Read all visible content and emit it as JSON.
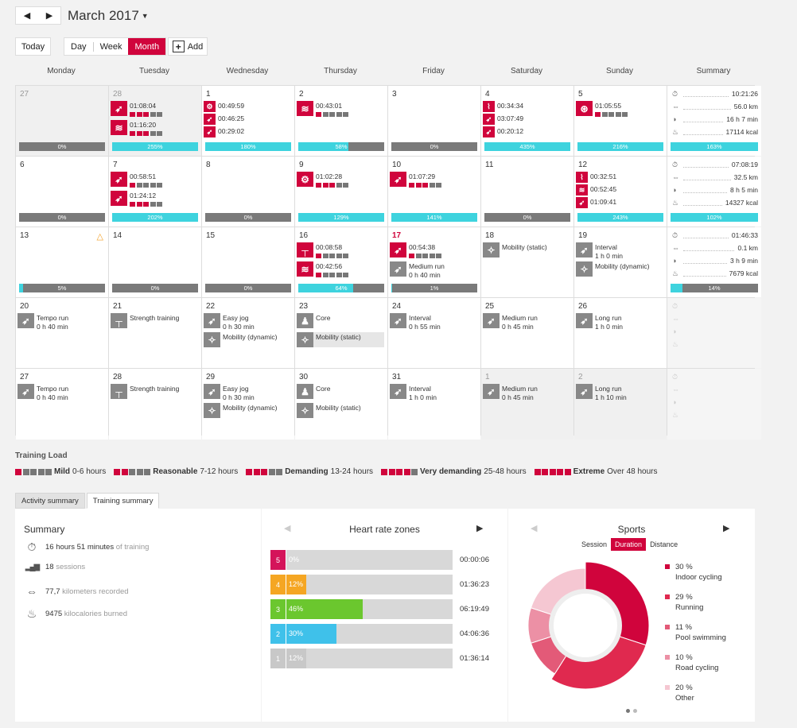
{
  "header": {
    "prev_icon": "prev-arrow",
    "next_icon": "next-arrow",
    "month": "March 2017",
    "today": "Today",
    "views": [
      "Day",
      "Week",
      "Month"
    ],
    "active_view": "Month",
    "add": "Add"
  },
  "days": [
    "Monday",
    "Tuesday",
    "Wednesday",
    "Thursday",
    "Friday",
    "Saturday",
    "Sunday",
    "Summary"
  ],
  "weeks": [
    {
      "cells": [
        {
          "day": "27",
          "dim": true,
          "grey": true,
          "acts": [],
          "bar": {
            "label": "0%",
            "fill": 0
          }
        },
        {
          "day": "28",
          "dim": true,
          "grey": true,
          "acts": [
            {
              "icon": "run",
              "color": "r",
              "lines": [
                "01:08:04"
              ],
              "dots": 3
            },
            {
              "icon": "swim",
              "color": "r",
              "lines": [
                "01:16:20"
              ],
              "dots": 3
            }
          ],
          "bar": {
            "label": "255%",
            "fill": 1
          }
        },
        {
          "day": "1",
          "acts": [
            {
              "icon": "cycle",
              "color": "r",
              "lines": [
                "00:49:59"
              ],
              "small": true
            },
            {
              "icon": "run",
              "color": "r",
              "lines": [
                "00:46:25"
              ],
              "small": true
            },
            {
              "icon": "run",
              "color": "r",
              "lines": [
                "00:29:02"
              ],
              "small": true
            }
          ],
          "bar": {
            "label": "180%",
            "fill": 1
          }
        },
        {
          "day": "2",
          "acts": [
            {
              "icon": "swim",
              "color": "r",
              "lines": [
                "00:43:01"
              ],
              "dots": 1
            }
          ],
          "bar": {
            "label": "58%",
            "fill": 0.58
          }
        },
        {
          "day": "3",
          "acts": [],
          "bar": {
            "label": "0%",
            "fill": 0
          }
        },
        {
          "day": "4",
          "acts": [
            {
              "icon": "row",
              "color": "r",
              "lines": [
                "00:34:34"
              ],
              "small": true
            },
            {
              "icon": "run",
              "color": "r",
              "lines": [
                "03:07:49"
              ],
              "small": true
            },
            {
              "icon": "run",
              "color": "r",
              "lines": [
                "00:20:12"
              ],
              "small": true
            }
          ],
          "bar": {
            "label": "435%",
            "fill": 1
          }
        },
        {
          "day": "5",
          "acts": [
            {
              "icon": "tri",
              "color": "r",
              "lines": [
                "01:05:55"
              ],
              "dots": 1
            }
          ],
          "bar": {
            "label": "216%",
            "fill": 1
          }
        }
      ],
      "summary": {
        "duration": "10:21:26",
        "distance": "56.0 km",
        "load": "16 h 7 min",
        "kcal": "17114 kcal",
        "bar": "163%",
        "fill": 1
      }
    },
    {
      "cells": [
        {
          "day": "6",
          "acts": [],
          "bar": {
            "label": "0%",
            "fill": 0
          }
        },
        {
          "day": "7",
          "acts": [
            {
              "icon": "run",
              "color": "r",
              "lines": [
                "00:58:51"
              ],
              "dots": 1
            },
            {
              "icon": "run",
              "color": "r",
              "lines": [
                "01:24:12"
              ],
              "dots": 3
            }
          ],
          "bar": {
            "label": "202%",
            "fill": 1
          }
        },
        {
          "day": "8",
          "acts": [],
          "bar": {
            "label": "0%",
            "fill": 0
          }
        },
        {
          "day": "9",
          "acts": [
            {
              "icon": "cycle",
              "color": "r",
              "lines": [
                "01:02:28"
              ],
              "dots": 3
            }
          ],
          "bar": {
            "label": "129%",
            "fill": 1
          }
        },
        {
          "day": "10",
          "acts": [
            {
              "icon": "run",
              "color": "r",
              "lines": [
                "01:07:29"
              ],
              "dots": 3
            }
          ],
          "bar": {
            "label": "141%",
            "fill": 1
          }
        },
        {
          "day": "11",
          "acts": [],
          "bar": {
            "label": "0%",
            "fill": 0
          }
        },
        {
          "day": "12",
          "acts": [
            {
              "icon": "row",
              "color": "r",
              "lines": [
                "00:32:51"
              ],
              "small": true
            },
            {
              "icon": "swim",
              "color": "r",
              "lines": [
                "00:52:45"
              ],
              "small": true
            },
            {
              "icon": "run",
              "color": "r",
              "lines": [
                "01:09:41"
              ],
              "small": true
            }
          ],
          "bar": {
            "label": "243%",
            "fill": 1
          }
        }
      ],
      "summary": {
        "duration": "07:08:19",
        "distance": "32.5 km",
        "load": "8 h 5 min",
        "kcal": "14327 kcal",
        "bar": "102%",
        "fill": 1
      }
    },
    {
      "cells": [
        {
          "day": "13",
          "acts": [],
          "bar": {
            "label": "5%",
            "fill": 0.05
          },
          "hat": "△"
        },
        {
          "day": "14",
          "acts": [],
          "bar": {
            "label": "0%",
            "fill": 0
          }
        },
        {
          "day": "15",
          "acts": [],
          "bar": {
            "label": "0%",
            "fill": 0
          }
        },
        {
          "day": "16",
          "acts": [
            {
              "icon": "strength",
              "color": "r",
              "lines": [
                "00:08:58"
              ],
              "dots": 1
            },
            {
              "icon": "swim",
              "color": "r",
              "lines": [
                "00:42:56"
              ],
              "dots": 1
            }
          ],
          "bar": {
            "label": "64%",
            "fill": 0.64
          }
        },
        {
          "day": "17",
          "today": true,
          "acts": [
            {
              "icon": "run",
              "color": "r",
              "lines": [
                "00:54:38"
              ],
              "dots": 1
            },
            {
              "icon": "run",
              "color": "g",
              "lines": [
                "Medium run",
                "0 h 40 min"
              ]
            }
          ],
          "bar": {
            "label": "1%",
            "fill": 0.01
          }
        },
        {
          "day": "18",
          "acts": [
            {
              "icon": "mobility",
              "color": "g",
              "lines": [
                "Mobility (static)"
              ]
            }
          ]
        },
        {
          "day": "19",
          "acts": [
            {
              "icon": "run",
              "color": "g",
              "lines": [
                "Interval",
                "1 h 0 min"
              ]
            },
            {
              "icon": "mobility",
              "color": "g",
              "lines": [
                "Mobility (dynamic)"
              ]
            }
          ]
        }
      ],
      "summary": {
        "duration": "01:46:33",
        "distance": "0.1 km",
        "load": "3 h 9 min",
        "kcal": "7679 kcal",
        "bar": "14%",
        "fill": 0.14
      }
    },
    {
      "cells": [
        {
          "day": "20",
          "acts": [
            {
              "icon": "run",
              "color": "g",
              "lines": [
                "Tempo run",
                "0 h 40 min"
              ]
            }
          ]
        },
        {
          "day": "21",
          "acts": [
            {
              "icon": "strength",
              "color": "g",
              "lines": [
                "Strength training"
              ]
            }
          ]
        },
        {
          "day": "22",
          "acts": [
            {
              "icon": "run",
              "color": "g",
              "lines": [
                "Easy jog",
                "0 h 30 min"
              ]
            },
            {
              "icon": "mobility",
              "color": "g",
              "lines": [
                "Mobility (dynamic)"
              ]
            }
          ]
        },
        {
          "day": "23",
          "acts": [
            {
              "icon": "core",
              "color": "g",
              "lines": [
                "Core"
              ]
            },
            {
              "icon": "mobility",
              "color": "g",
              "lines": [
                "Mobility (static)"
              ],
              "hl": true
            }
          ]
        },
        {
          "day": "24",
          "acts": [
            {
              "icon": "run",
              "color": "g",
              "lines": [
                "Interval",
                "0 h 55 min"
              ]
            }
          ]
        },
        {
          "day": "25",
          "acts": [
            {
              "icon": "run",
              "color": "g",
              "lines": [
                "Medium run",
                "0 h 45 min"
              ]
            }
          ]
        },
        {
          "day": "26",
          "acts": [
            {
              "icon": "run",
              "color": "g",
              "lines": [
                "Long run",
                "1 h 0 min"
              ]
            }
          ]
        }
      ],
      "summary": null
    },
    {
      "cells": [
        {
          "day": "27",
          "acts": [
            {
              "icon": "run",
              "color": "g",
              "lines": [
                "Tempo run",
                "0 h 40 min"
              ]
            }
          ]
        },
        {
          "day": "28",
          "acts": [
            {
              "icon": "strength",
              "color": "g",
              "lines": [
                "Strength training"
              ]
            }
          ]
        },
        {
          "day": "29",
          "acts": [
            {
              "icon": "run",
              "color": "g",
              "lines": [
                "Easy jog",
                "0 h 30 min"
              ]
            },
            {
              "icon": "mobility",
              "color": "g",
              "lines": [
                "Mobility (dynamic)"
              ]
            }
          ]
        },
        {
          "day": "30",
          "acts": [
            {
              "icon": "core",
              "color": "g",
              "lines": [
                "Core"
              ]
            },
            {
              "icon": "mobility",
              "color": "g",
              "lines": [
                "Mobility (static)"
              ]
            }
          ]
        },
        {
          "day": "31",
          "acts": [
            {
              "icon": "run",
              "color": "g",
              "lines": [
                "Interval",
                "1 h 0 min"
              ]
            }
          ]
        },
        {
          "day": "1",
          "dim": true,
          "grey": true,
          "acts": [
            {
              "icon": "run",
              "color": "g",
              "lines": [
                "Medium run",
                "0 h 45 min"
              ]
            }
          ]
        },
        {
          "day": "2",
          "dim": true,
          "grey": true,
          "acts": [
            {
              "icon": "run",
              "color": "g",
              "lines": [
                "Long run",
                "1 h 10 min"
              ]
            }
          ]
        }
      ],
      "summary": null
    }
  ],
  "training_load": {
    "title": "Training Load",
    "levels": [
      {
        "name": "Mild",
        "range": "0-6 hours",
        "on": 1
      },
      {
        "name": "Reasonable",
        "range": "7-12 hours",
        "on": 2
      },
      {
        "name": "Demanding",
        "range": "13-24 hours",
        "on": 3
      },
      {
        "name": "Very demanding",
        "range": "25-48 hours",
        "on": 4
      },
      {
        "name": "Extreme",
        "range": "Over 48 hours",
        "on": 5
      }
    ]
  },
  "tabs": [
    "Activity summary",
    "Training summary"
  ],
  "summary": {
    "title": "Summary",
    "rows": [
      {
        "icon": "stopwatch-icon",
        "glyph": "⏱",
        "value": "16 hours 51 minutes",
        "label": "of training"
      },
      {
        "icon": "sessions-icon",
        "glyph": "▂▄▆",
        "value": "18",
        "label": "sessions"
      },
      {
        "icon": "distance-icon",
        "glyph": "⇔",
        "value": "77,7",
        "label": "kilometers recorded"
      },
      {
        "icon": "flame-icon",
        "glyph": "♨",
        "value": "9475",
        "label": "kilocalories burned"
      }
    ]
  },
  "hr": {
    "title": "Heart rate zones",
    "zones": [
      {
        "zone": "5",
        "pct": 0,
        "label": "0%",
        "time": "00:00:06",
        "color": "#d4145a"
      },
      {
        "zone": "4",
        "pct": 0.12,
        "label": "12%",
        "time": "01:36:23",
        "color": "#f5a623"
      },
      {
        "zone": "3",
        "pct": 0.46,
        "label": "46%",
        "time": "06:19:49",
        "color": "#6bc72e"
      },
      {
        "zone": "2",
        "pct": 0.3,
        "label": "30%",
        "time": "04:06:36",
        "color": "#3fc1ea"
      },
      {
        "zone": "1",
        "pct": 0.12,
        "label": "12%",
        "time": "01:36:14",
        "color": "#c8c8c8"
      }
    ]
  },
  "sports": {
    "title": "Sports",
    "tabs": [
      "Session",
      "Duration",
      "Distance"
    ],
    "active": "Duration",
    "items": [
      {
        "pct": "30 %",
        "name": "Indoor cycling",
        "value": 30,
        "color": "#d0043c"
      },
      {
        "pct": "29 %",
        "name": "Running",
        "value": 29,
        "color": "#e0294f"
      },
      {
        "pct": "11 %",
        "name": "Pool swimming",
        "value": 11,
        "color": "#e35a78"
      },
      {
        "pct": "10 %",
        "name": "Road cycling",
        "value": 10,
        "color": "#ec90a5"
      },
      {
        "pct": "20 %",
        "name": "Other",
        "value": 20,
        "color": "#f5c7d2"
      }
    ]
  }
}
